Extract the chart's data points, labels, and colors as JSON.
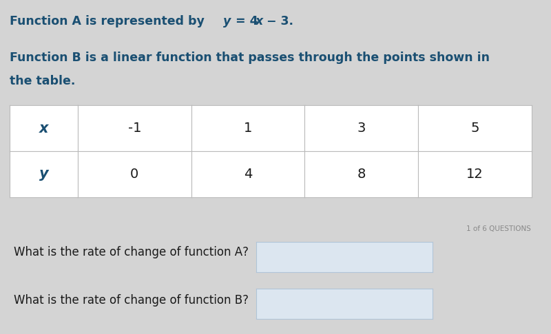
{
  "bg_gray_color": "#d4d4d4",
  "bg_white_color": "#ffffff",
  "title_line1_plain": "Function A is represented by  ",
  "title_line2": "Function B is a linear function that passes through the points shown in",
  "title_line3": "the table.",
  "table_headers": [
    "x",
    "-1",
    "1",
    "3",
    "5"
  ],
  "table_row2": [
    "y",
    "0",
    "4",
    "8",
    "12"
  ],
  "question_label": "1 of 6 QUESTIONS",
  "question1": "What is the rate of change of function A?",
  "question2": "What is the rate of change of function B?",
  "text_color_blue": "#1a4f72",
  "text_color_black": "#1a1a1a",
  "text_color_gray": "#888888",
  "table_bg": "#ffffff",
  "table_header_bg": "#f0f0f0",
  "table_border": "#bbbbbb",
  "input_box_color": "#dce6f0",
  "input_box_border": "#b0c4d8",
  "fig_width": 8.0,
  "fig_height": 4.86,
  "dpi": 100
}
